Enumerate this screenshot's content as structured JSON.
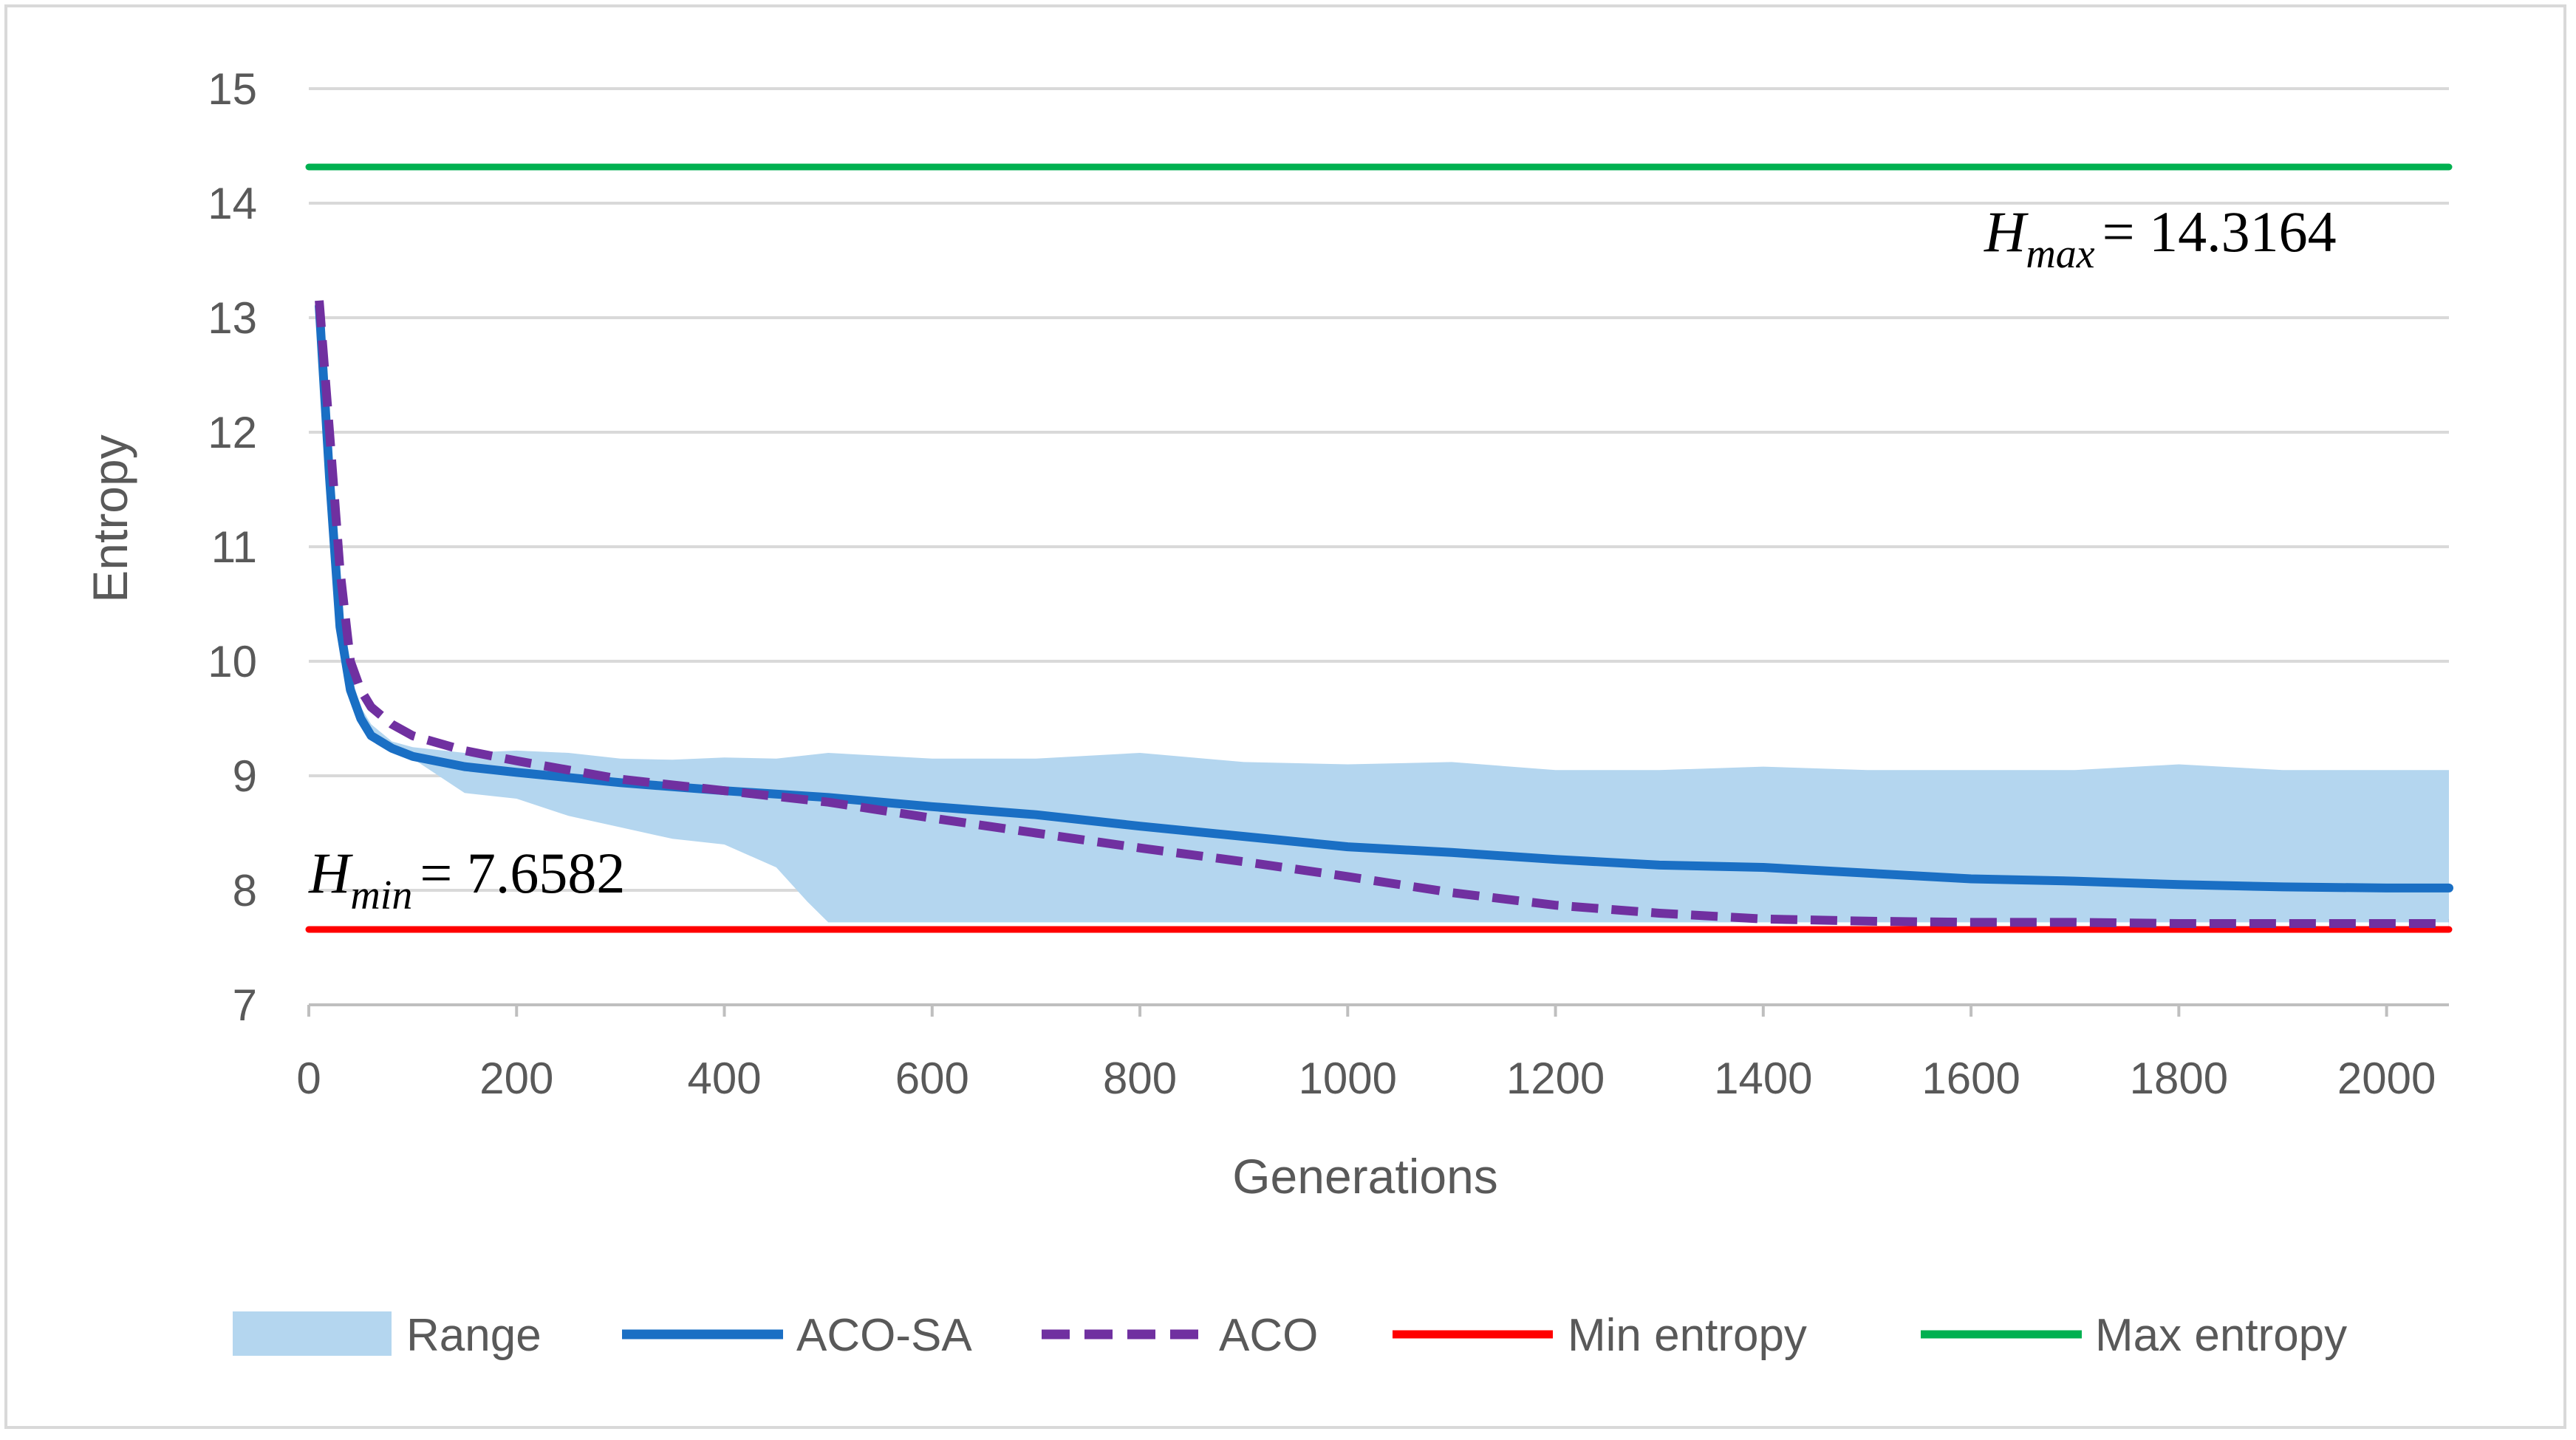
{
  "chart_data": {
    "type": "line",
    "title": "",
    "xlabel": "Generations",
    "ylabel": "Entropy",
    "xlim": [
      0,
      2060
    ],
    "ylim": [
      7,
      15
    ],
    "xticks": [
      0,
      200,
      400,
      600,
      800,
      1000,
      1200,
      1400,
      1600,
      1800,
      2000
    ],
    "yticks": [
      7,
      8,
      9,
      10,
      11,
      12,
      13,
      14,
      15
    ],
    "grid": "horizontal",
    "legend_position": "bottom",
    "series": [
      {
        "name": "Range",
        "style": "band",
        "color": "#b4d6ef",
        "x": [
          10,
          20,
          30,
          40,
          50,
          60,
          80,
          100,
          150,
          200,
          250,
          300,
          350,
          400,
          450,
          480,
          500,
          600,
          700,
          800,
          900,
          1000,
          1100,
          1200,
          1300,
          1400,
          1500,
          1600,
          1700,
          1800,
          1900,
          2000,
          2060
        ],
        "upper": [
          13.0,
          11.8,
          10.6,
          9.9,
          9.6,
          9.45,
          9.3,
          9.25,
          9.2,
          9.22,
          9.2,
          9.15,
          9.14,
          9.16,
          9.15,
          9.18,
          9.2,
          9.15,
          9.15,
          9.2,
          9.12,
          9.1,
          9.12,
          9.05,
          9.05,
          9.08,
          9.05,
          9.05,
          9.05,
          9.1,
          9.05,
          9.05,
          9.05
        ],
        "lower": [
          13.0,
          11.6,
          10.4,
          9.8,
          9.5,
          9.35,
          9.25,
          9.15,
          8.85,
          8.8,
          8.65,
          8.55,
          8.45,
          8.4,
          8.2,
          7.9,
          7.72,
          7.72,
          7.72,
          7.72,
          7.72,
          7.72,
          7.72,
          7.72,
          7.72,
          7.72,
          7.72,
          7.72,
          7.72,
          7.72,
          7.72,
          7.72,
          7.72
        ]
      },
      {
        "name": "ACO-SA",
        "style": "solid",
        "color": "#1a6fc4",
        "x": [
          10,
          20,
          30,
          40,
          50,
          60,
          80,
          100,
          150,
          200,
          300,
          400,
          500,
          600,
          700,
          800,
          900,
          1000,
          1100,
          1200,
          1300,
          1400,
          1500,
          1600,
          1700,
          1800,
          1900,
          2000,
          2060
        ],
        "values": [
          13.1,
          11.6,
          10.3,
          9.75,
          9.5,
          9.35,
          9.24,
          9.17,
          9.08,
          9.03,
          8.94,
          8.87,
          8.81,
          8.73,
          8.66,
          8.56,
          8.47,
          8.38,
          8.33,
          8.27,
          8.22,
          8.2,
          8.15,
          8.1,
          8.08,
          8.05,
          8.03,
          8.02,
          8.02
        ]
      },
      {
        "name": "ACO",
        "style": "dashed",
        "color": "#7030a0",
        "x": [
          10,
          20,
          30,
          40,
          50,
          60,
          80,
          100,
          150,
          200,
          300,
          400,
          500,
          600,
          700,
          800,
          900,
          1000,
          1100,
          1200,
          1300,
          1400,
          1500,
          1600,
          1700,
          1800,
          1900,
          2000,
          2060
        ],
        "values": [
          13.15,
          12.0,
          10.8,
          10.0,
          9.75,
          9.6,
          9.45,
          9.35,
          9.22,
          9.13,
          8.97,
          8.87,
          8.77,
          8.63,
          8.5,
          8.37,
          8.25,
          8.12,
          7.98,
          7.87,
          7.8,
          7.75,
          7.73,
          7.72,
          7.72,
          7.71,
          7.71,
          7.71,
          7.71
        ]
      },
      {
        "name": "Min entropy",
        "style": "solid",
        "color": "#ff0000",
        "x": [
          0,
          2060
        ],
        "values": [
          7.6582,
          7.6582
        ]
      },
      {
        "name": "Max entropy",
        "style": "solid",
        "color": "#00b050",
        "x": [
          0,
          2060
        ],
        "values": [
          14.3164,
          14.3164
        ]
      }
    ],
    "annotations": [
      {
        "symbol": "H",
        "subscript": "max",
        "text": "= 14.3164"
      },
      {
        "symbol": "H",
        "subscript": "min",
        "text": "= 7.6582"
      }
    ]
  }
}
